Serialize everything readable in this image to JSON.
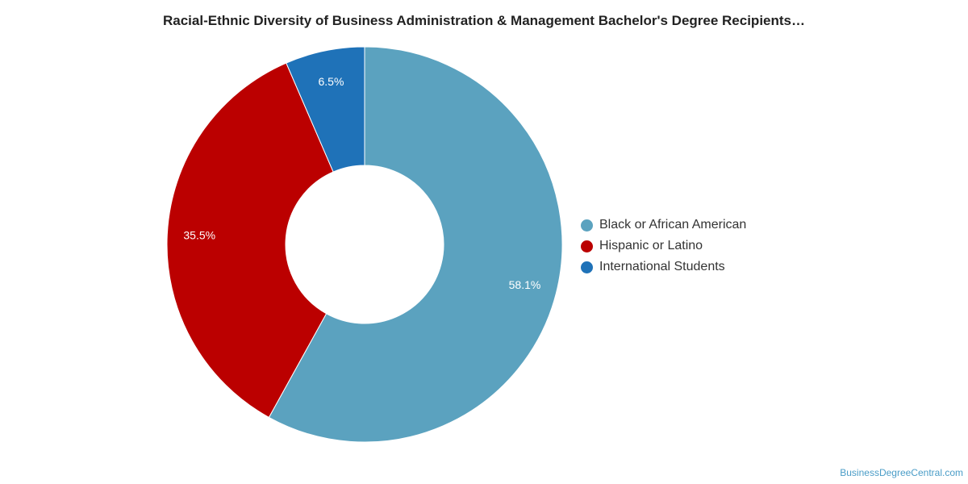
{
  "chart_data": {
    "type": "pie",
    "title": "Racial-Ethnic Diversity of Business Administration & Management Bachelor's Degree Recipients…",
    "donut": true,
    "legend_position": "right",
    "slices": [
      {
        "name": "Black or African American",
        "value": 58.1,
        "label": "58.1%",
        "color": "#5ba2bf"
      },
      {
        "name": "Hispanic or Latino",
        "value": 35.5,
        "label": "35.5%",
        "color": "#bb0000"
      },
      {
        "name": "International Students",
        "value": 6.5,
        "label": "6.5%",
        "color": "#1f72b8"
      }
    ]
  },
  "watermark": "BusinessDegreeCentral.com"
}
